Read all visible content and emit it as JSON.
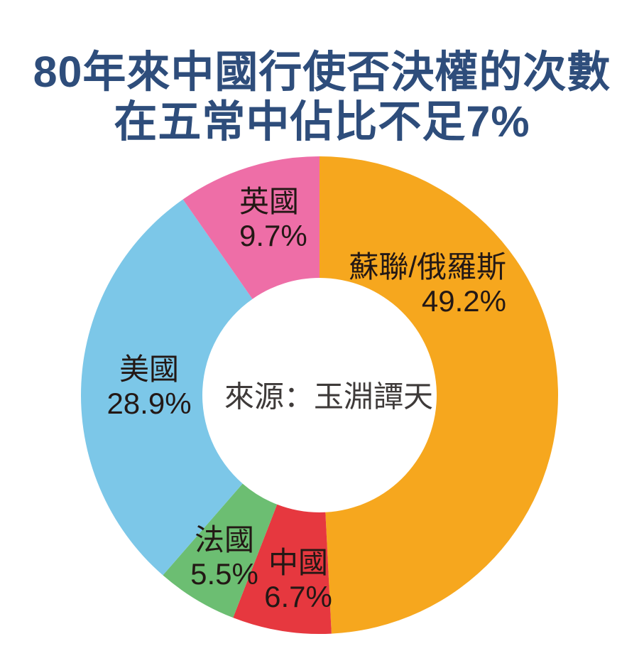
{
  "title": {
    "line1": "80年來中國行使否決權的次數",
    "line2": "在五常中佔比不足7%",
    "color": "#2E4D7B"
  },
  "chart_data": {
    "type": "pie",
    "style": "donut",
    "title": "80年來中國行使否決權的次數在五常中佔比不足7%",
    "start_angle_deg": 0,
    "direction": "clockwise",
    "legend_position": "labels-on-slices",
    "source_label": "來源：玉淵譚天",
    "segments": [
      {
        "label": "蘇聯/俄羅斯",
        "value": 49.2,
        "display": "49.2%",
        "color": "#F6A71E"
      },
      {
        "label": "中國",
        "value": 6.7,
        "display": "6.7%",
        "color": "#E6383F"
      },
      {
        "label": "法國",
        "value": 5.5,
        "display": "5.5%",
        "color": "#6CBE72"
      },
      {
        "label": "美國",
        "value": 28.9,
        "display": "28.9%",
        "color": "#7CC7E8"
      },
      {
        "label": "英國",
        "value": 9.7,
        "display": "9.7%",
        "color": "#EE6EA7"
      }
    ]
  }
}
